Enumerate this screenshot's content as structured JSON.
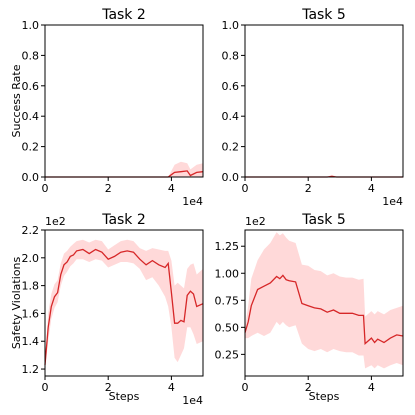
{
  "chart_data": [
    {
      "type": "line",
      "title": "Task 2",
      "xlabel": "",
      "ylabel": "Success Rate",
      "xlim": [
        0,
        50000
      ],
      "ylim": [
        0,
        1.0
      ],
      "x_offset_label": "1e4",
      "y_offset_label": "",
      "xticks": [
        0,
        20000,
        40000
      ],
      "xtick_labels": [
        "0",
        "2",
        "4"
      ],
      "yticks": [
        0,
        0.2,
        0.4,
        0.6,
        0.8,
        1.0
      ],
      "ytick_labels": [
        "0.0",
        "0.2",
        "0.4",
        "0.6",
        "0.8",
        "1.0"
      ],
      "grid": false,
      "color": "#d62728",
      "band_color": "#ffc0c0",
      "series": [
        {
          "x": [
            0,
            5000,
            10000,
            15000,
            20000,
            25000,
            30000,
            35000,
            39000,
            40000,
            41000,
            43000,
            45000,
            46000,
            48000,
            50000
          ],
          "y": [
            0,
            0,
            0,
            0,
            0,
            0,
            0,
            0,
            0,
            0.015,
            0.03,
            0.035,
            0.04,
            0.01,
            0.03,
            0.035
          ],
          "lower": [
            0,
            0,
            0,
            0,
            0,
            0,
            0,
            0,
            0,
            0,
            0,
            0,
            0,
            0,
            0,
            0
          ],
          "upper": [
            0,
            0,
            0,
            0,
            0,
            0,
            0,
            0,
            0,
            0.04,
            0.08,
            0.1,
            0.09,
            0.05,
            0.08,
            0.09
          ]
        }
      ]
    },
    {
      "type": "line",
      "title": "Task 5",
      "xlabel": "",
      "ylabel": "",
      "xlim": [
        0,
        50000
      ],
      "ylim": [
        0,
        1.0
      ],
      "x_offset_label": "1e4",
      "y_offset_label": "",
      "xticks": [
        0,
        20000,
        40000
      ],
      "xtick_labels": [
        "0",
        "2",
        "4"
      ],
      "yticks": [
        0,
        0.2,
        0.4,
        0.6,
        0.8,
        1.0
      ],
      "ytick_labels": [
        "0.0",
        "0.2",
        "0.4",
        "0.6",
        "0.8",
        "1.0"
      ],
      "grid": false,
      "color": "#d62728",
      "band_color": "#ffc0c0",
      "series": [
        {
          "x": [
            0,
            10000,
            20000,
            26000,
            27500,
            29000,
            35000,
            40000,
            50000
          ],
          "y": [
            0,
            0,
            0,
            0,
            0.004,
            0,
            0,
            0,
            0
          ],
          "lower": [
            0,
            0,
            0,
            0,
            0,
            0,
            0,
            0,
            0
          ],
          "upper": [
            0,
            0,
            0,
            0,
            0.015,
            0,
            0,
            0,
            0
          ]
        }
      ]
    },
    {
      "type": "line",
      "title": "Task 2",
      "xlabel": "Steps",
      "ylabel": "Safety Violations",
      "xlim": [
        0,
        50000
      ],
      "ylim": [
        115,
        220
      ],
      "x_offset_label": "1e4",
      "y_offset_label": "1e2",
      "xticks": [
        0,
        20000,
        40000
      ],
      "xtick_labels": [
        "0",
        "2",
        "4"
      ],
      "yticks": [
        120,
        140,
        160,
        180,
        200,
        220
      ],
      "ytick_labels": [
        "1.2",
        "1.4",
        "1.6",
        "1.8",
        "2.0",
        "2.2"
      ],
      "grid": false,
      "color": "#d62728",
      "band_color": "#ffc0c0",
      "series": [
        {
          "x": [
            0,
            1000,
            2000,
            3000,
            4000,
            5000,
            6000,
            7000,
            8000,
            9000,
            10000,
            12000,
            14000,
            16000,
            18000,
            20000,
            22000,
            24000,
            26000,
            28000,
            30000,
            32000,
            34000,
            36000,
            38000,
            39000,
            40000,
            41000,
            42000,
            43000,
            44000,
            45000,
            46000,
            47000,
            48000,
            50000
          ],
          "y": [
            123,
            150,
            165,
            172,
            175,
            188,
            195,
            197,
            201,
            202,
            205,
            206,
            203,
            206,
            204,
            199,
            201,
            204,
            205,
            204,
            199,
            195,
            198,
            195,
            193,
            196,
            175,
            153,
            153,
            155,
            154,
            173,
            176,
            174,
            165,
            167
          ],
          "lower": [
            120,
            140,
            156,
            164,
            168,
            180,
            187,
            190,
            194,
            196,
            199,
            199,
            197,
            199,
            198,
            193,
            195,
            197,
            197,
            196,
            192,
            184,
            186,
            180,
            172,
            165,
            150,
            128,
            125,
            130,
            135,
            150,
            150,
            145,
            138,
            140
          ],
          "upper": [
            126,
            160,
            174,
            181,
            184,
            196,
            203,
            205,
            208,
            210,
            212,
            213,
            211,
            213,
            212,
            206,
            209,
            212,
            213,
            212,
            207,
            205,
            207,
            206,
            205,
            205,
            198,
            180,
            182,
            180,
            178,
            192,
            195,
            196,
            188,
            192
          ]
        }
      ]
    },
    {
      "type": "line",
      "title": "Task 5",
      "xlabel": "Steps",
      "ylabel": "",
      "xlim": [
        0,
        50000
      ],
      "ylim": [
        5,
        140
      ],
      "x_offset_label": "",
      "y_offset_label": "1e2",
      "xticks": [
        0,
        20000,
        40000
      ],
      "xtick_labels": [
        "0",
        "2",
        "4"
      ],
      "yticks": [
        25,
        50,
        75,
        100,
        125
      ],
      "ytick_labels": [
        "0.25",
        "0.50",
        "0.75",
        "1.00",
        "1.25"
      ],
      "grid": false,
      "color": "#d62728",
      "band_color": "#ffc0c0",
      "series": [
        {
          "x": [
            0,
            1000,
            2000,
            4000,
            6000,
            8000,
            10000,
            11000,
            12000,
            13000,
            14000,
            16000,
            18000,
            20000,
            22000,
            24000,
            26000,
            28000,
            30000,
            32000,
            34000,
            36000,
            37500,
            38000,
            40000,
            41000,
            42000,
            44000,
            46000,
            48000,
            50000
          ],
          "y": [
            45,
            55,
            70,
            85,
            88,
            91,
            97,
            95,
            98,
            94,
            93,
            92,
            72,
            70,
            68,
            67,
            64,
            66,
            63,
            63,
            63,
            61,
            61,
            35,
            40,
            36,
            39,
            36,
            40,
            43,
            42
          ],
          "lower": [
            40,
            40,
            42,
            45,
            42,
            45,
            55,
            52,
            55,
            52,
            50,
            52,
            35,
            30,
            28,
            30,
            27,
            30,
            28,
            27,
            27,
            24,
            24,
            12,
            15,
            12,
            15,
            12,
            15,
            17,
            15
          ],
          "upper": [
            50,
            70,
            95,
            112,
            122,
            128,
            138,
            135,
            137,
            133,
            130,
            128,
            108,
            107,
            103,
            102,
            98,
            100,
            97,
            96,
            96,
            94,
            95,
            60,
            65,
            62,
            65,
            62,
            66,
            68,
            70
          ]
        }
      ]
    }
  ]
}
